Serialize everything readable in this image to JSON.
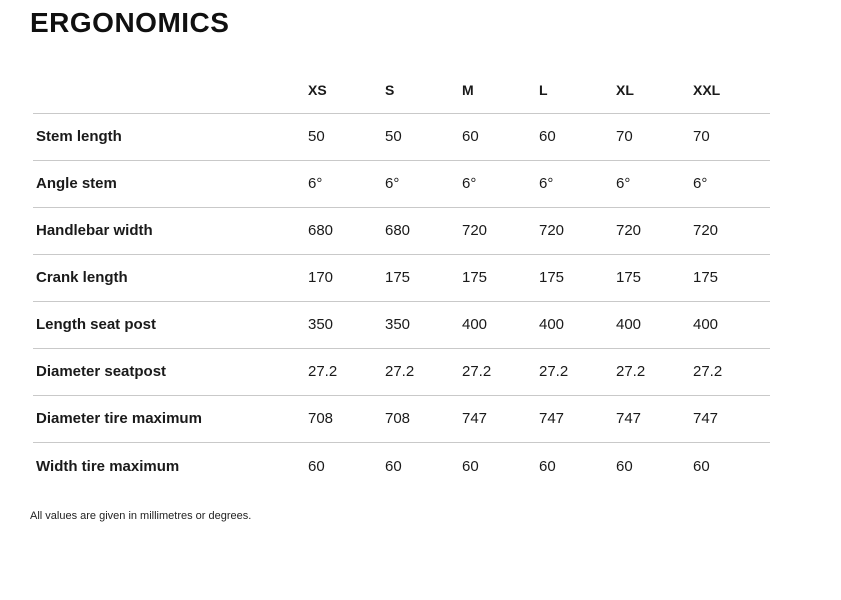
{
  "title": "ERGONOMICS",
  "table": {
    "size_headers": [
      "XS",
      "S",
      "M",
      "L",
      "XL",
      "XXL"
    ],
    "rows": [
      {
        "label": "Stem length",
        "values": [
          "50",
          "50",
          "60",
          "60",
          "70",
          "70"
        ]
      },
      {
        "label": "Angle stem",
        "values": [
          "6°",
          "6°",
          "6°",
          "6°",
          "6°",
          "6°"
        ]
      },
      {
        "label": "Handlebar width",
        "values": [
          "680",
          "680",
          "720",
          "720",
          "720",
          "720"
        ]
      },
      {
        "label": "Crank length",
        "values": [
          "170",
          "175",
          "175",
          "175",
          "175",
          "175"
        ]
      },
      {
        "label": "Length seat post",
        "values": [
          "350",
          "350",
          "400",
          "400",
          "400",
          "400"
        ]
      },
      {
        "label": "Diameter seatpost",
        "values": [
          "27.2",
          "27.2",
          "27.2",
          "27.2",
          "27.2",
          "27.2"
        ]
      },
      {
        "label": "Diameter tire maximum",
        "values": [
          "708",
          "708",
          "747",
          "747",
          "747",
          "747"
        ]
      },
      {
        "label": "Width tire maximum",
        "values": [
          "60",
          "60",
          "60",
          "60",
          "60",
          "60"
        ]
      }
    ]
  },
  "footnote": "All values are given in millimetres or degrees.",
  "colors": {
    "text": "#1a1a1a",
    "divider": "#c9c9c9",
    "background": "#ffffff"
  }
}
